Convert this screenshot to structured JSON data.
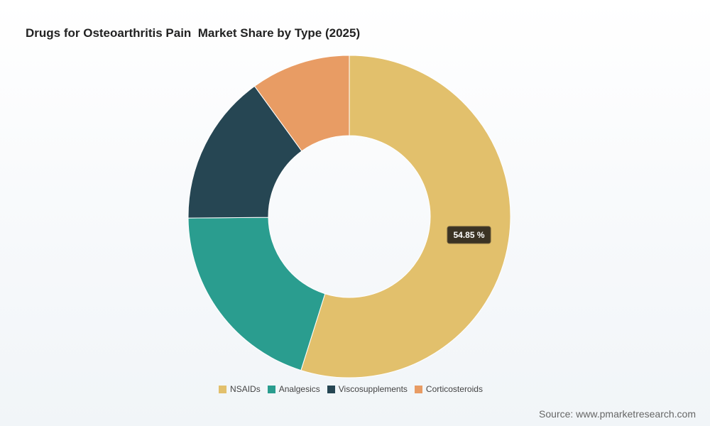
{
  "chart_data": {
    "type": "pie",
    "variant": "donut",
    "title": "Drugs for Osteoarthritis Pain  Market Share by Type (2025)",
    "categories": [
      "NSAIDs",
      "Analgesics",
      "Viscosupplements",
      "Corticosteroids"
    ],
    "values": [
      54.85,
      20.0,
      15.15,
      10.0
    ],
    "unit": "%",
    "colors": [
      "#e2c06c",
      "#2a9d8f",
      "#264653",
      "#e89c64"
    ],
    "data_labels": [
      {
        "category": "NSAIDs",
        "text": "54.85 %"
      }
    ],
    "legend_position": "bottom-center"
  },
  "source": "Source: www.pmarketresearch.com"
}
